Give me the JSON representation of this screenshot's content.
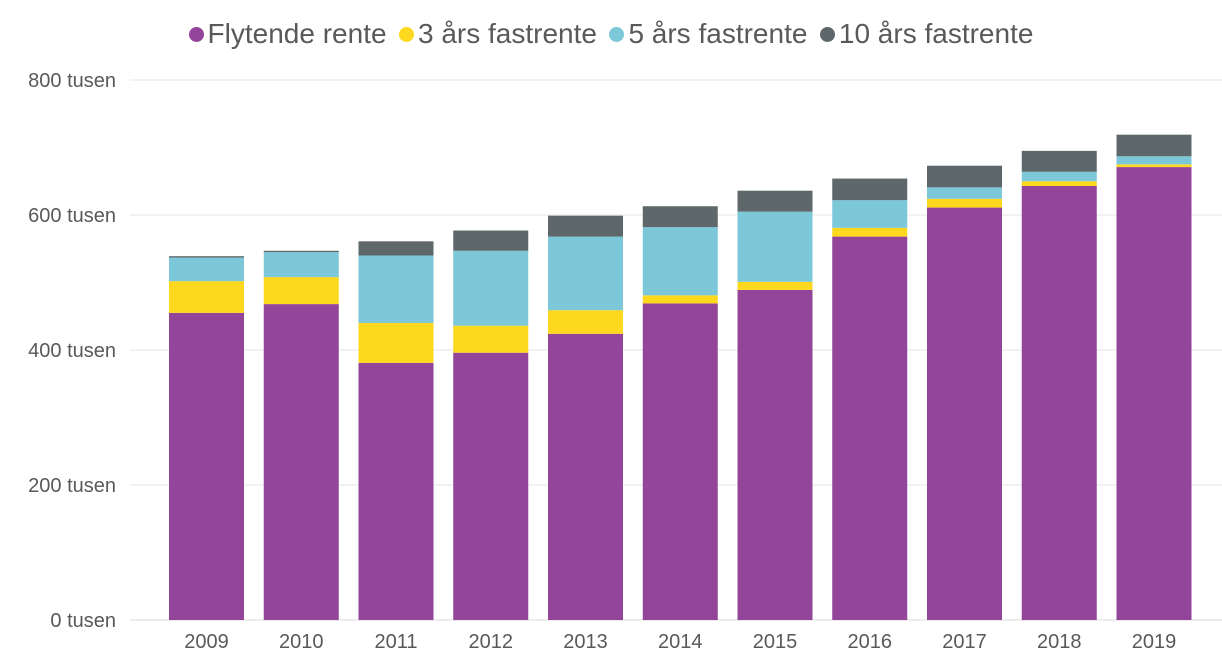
{
  "chart_data": {
    "type": "bar",
    "stacked": true,
    "categories": [
      "2009",
      "2010",
      "2011",
      "2012",
      "2013",
      "2014",
      "2015",
      "2016",
      "2017",
      "2018",
      "2019"
    ],
    "series": [
      {
        "name": "Flytende rente",
        "color": "#93459a",
        "values": [
          455,
          468,
          381,
          396,
          424,
          469,
          489,
          568,
          611,
          643,
          671
        ]
      },
      {
        "name": "3 års fastrente",
        "color": "#fdd81e",
        "values": [
          47,
          40,
          59,
          40,
          35,
          12,
          12,
          13,
          13,
          7,
          4
        ]
      },
      {
        "name": "5 års fastrente",
        "color": "#7cc7d8",
        "values": [
          35,
          37,
          100,
          111,
          109,
          101,
          104,
          41,
          17,
          14,
          12
        ]
      },
      {
        "name": "10 års fastrente",
        "color": "#5e686a",
        "values": [
          2,
          2,
          21,
          30,
          31,
          31,
          31,
          32,
          32,
          31,
          32
        ]
      }
    ],
    "yticks": [
      0,
      200,
      400,
      600,
      800
    ],
    "ytick_labels": [
      "0 tusen",
      "200 tusen",
      "400 tusen",
      "600 tusen",
      "800 tusen"
    ],
    "ylim": [
      0,
      800
    ],
    "grid": true,
    "legend_position": "top-center",
    "title": "",
    "xlabel": "",
    "ylabel": ""
  }
}
